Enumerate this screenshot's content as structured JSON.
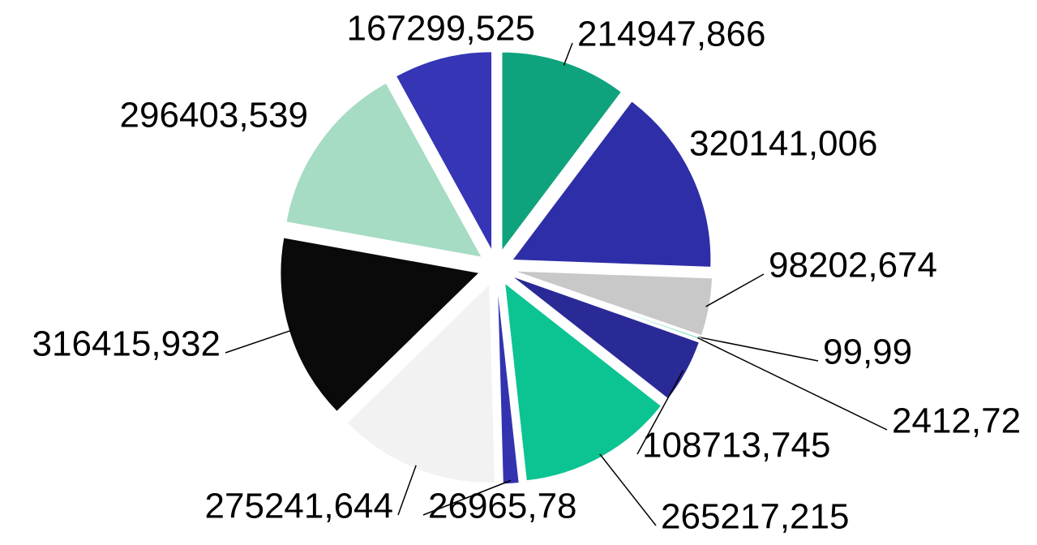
{
  "chart_data": {
    "type": "pie",
    "categories": [
      null,
      null,
      null,
      null,
      null,
      null,
      null,
      null,
      null,
      null,
      null,
      null
    ],
    "values": [
      214947.866,
      320141.006,
      98202.674,
      99.99,
      2412.72,
      108713.745,
      265217.215,
      26965.78,
      275241.644,
      316415.932,
      296403.539,
      167299.525
    ],
    "value_labels": [
      "214947,866",
      "320141,006",
      "98202,674",
      "99,99",
      "2412,72",
      "108713,745",
      "265217,215",
      "26965,78",
      "275241,644",
      "316415,932",
      "296403,539",
      "167299,525"
    ],
    "colors": [
      "#0ea37c",
      "#2e2ea8",
      "#c8c8c8",
      "#9fd4bc",
      "#0bc492",
      "#2a2a96",
      "#0bc492",
      "#3333b0",
      "#f2f2f2",
      "#0a0a0a",
      "#a6dbc4",
      "#3535b5"
    ]
  }
}
